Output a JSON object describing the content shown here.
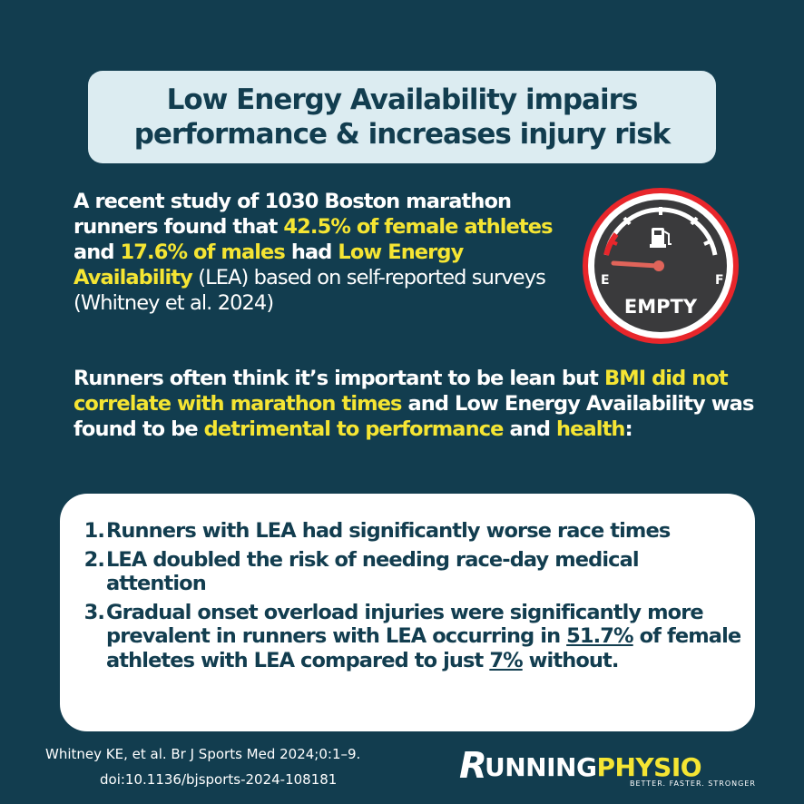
{
  "title": {
    "line1": "Low Energy Availability impairs",
    "line2": "performance & increases injury risk"
  },
  "para1": {
    "t1": "A recent study of 1030 Boston marathon runners found that ",
    "h1": "42.5% of female athletes",
    "t2": " and ",
    "h2": "17.6% of males",
    "t3": " had ",
    "h3": "Low Energy Availability",
    "t4": " (LEA) based on self-reported surveys (Whitney et al. 2024)"
  },
  "para2": {
    "t1": "Runners often think it’s important to be lean but ",
    "h1": "BMI did not correlate with marathon times",
    "t2": " and Low Energy Availability was found to be ",
    "h2": "detrimental to performance",
    "t3": " and ",
    "h3": "health",
    "t4": ":"
  },
  "gauge": {
    "label_e": "E",
    "label_f": "F",
    "label_empty": "EMPTY",
    "icon": "fuel-pump-icon",
    "ring_color": "#e8262b",
    "needle_color": "#e0645a"
  },
  "findings": [
    {
      "num": "1.",
      "text": "Runners with LEA had significantly worse race times"
    },
    {
      "num": "2.",
      "text": "LEA doubled the risk of needing race-day medical attention"
    },
    {
      "num": "3.",
      "text_a": "Gradual onset overload injuries were significantly more prevalent in runners with LEA occurring in ",
      "u1": "51.7%",
      "text_b": " of female athletes with LEA compared to just ",
      "u2": "7%",
      "text_c": " without."
    }
  ],
  "reference": {
    "line1": "Whitney KE, et al. Br J Sports Med 2024;0:1–9.",
    "line2": "doi:10.1136/bjsports-2024-108181"
  },
  "logo": {
    "r": "R",
    "part1": "UNNING",
    "part2": "PHYSIO",
    "tagline": "BETTER. FASTER. STRONGER"
  },
  "colors": {
    "background": "#123d4f",
    "highlight": "#f5e533",
    "title_box": "#dcecf1"
  }
}
